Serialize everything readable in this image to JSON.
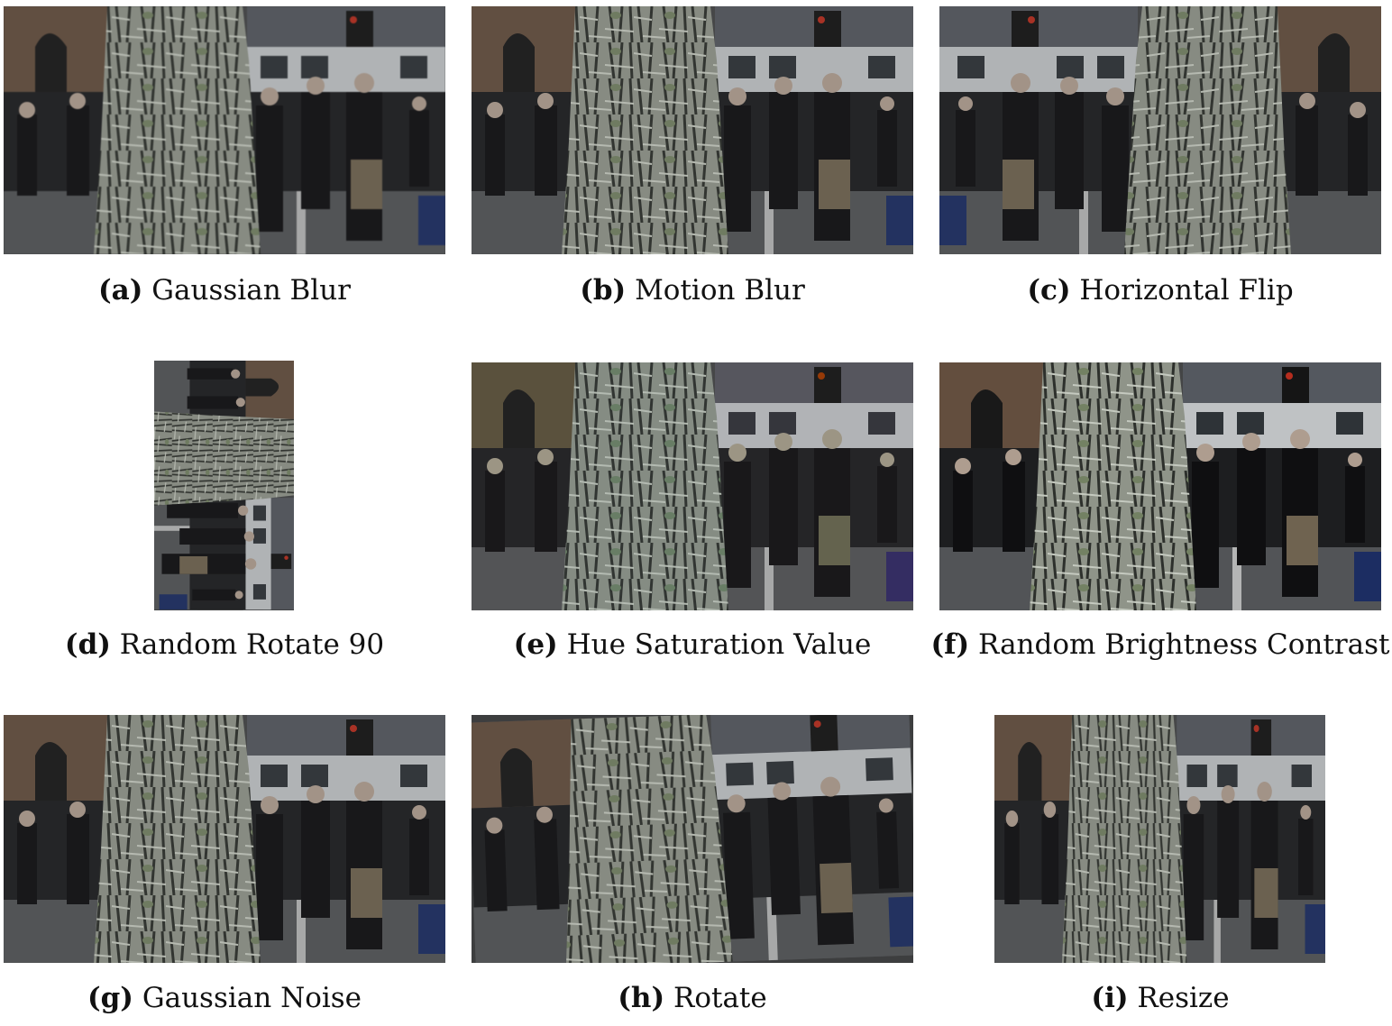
{
  "figure": {
    "panels": [
      {
        "id": "a",
        "label": "(a)",
        "caption": "Gaussian Blur"
      },
      {
        "id": "b",
        "label": "(b)",
        "caption": "Motion Blur"
      },
      {
        "id": "c",
        "label": "(c)",
        "caption": "Horizontal Flip"
      },
      {
        "id": "d",
        "label": "(d)",
        "caption": "Random Rotate 90"
      },
      {
        "id": "e",
        "label": "(e)",
        "caption": "Hue Saturation Value"
      },
      {
        "id": "f",
        "label": "(f)",
        "caption": "Random Brightness Contrast"
      },
      {
        "id": "g",
        "label": "(g)",
        "caption": "Gaussian Noise"
      },
      {
        "id": "h",
        "label": "(h)",
        "caption": "Rotate"
      },
      {
        "id": "i",
        "label": "(i)",
        "caption": "Resize"
      }
    ]
  }
}
